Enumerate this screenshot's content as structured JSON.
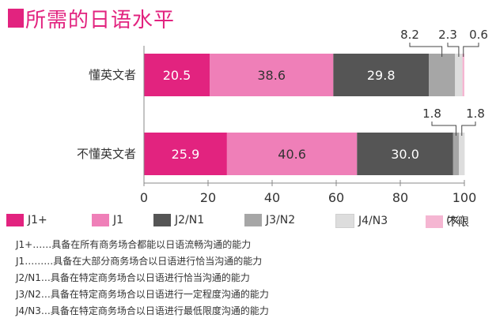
{
  "title": "所需的日语水平",
  "colors": {
    "title": "#e2237f",
    "J1+": "#e2237f",
    "J1": "#ef7fb8",
    "J2/N1": "#555555",
    "J3/N2": "#a6a6a6",
    "J4/N3": "#dddddd",
    "不限": "#f5b6d2"
  },
  "chart_data": {
    "type": "bar",
    "orientation": "horizontal",
    "stacked": true,
    "categories": [
      "懂英文者",
      "不懂英文者"
    ],
    "series": [
      {
        "name": "J1+",
        "values": [
          20.5,
          25.9
        ]
      },
      {
        "name": "J1",
        "values": [
          38.6,
          40.6
        ]
      },
      {
        "name": "J2/N1",
        "values": [
          29.8,
          30.0
        ]
      },
      {
        "name": "J3/N2",
        "values": [
          8.2,
          1.8
        ]
      },
      {
        "name": "J4/N3",
        "values": [
          2.3,
          1.8
        ]
      },
      {
        "name": "不限",
        "values": [
          0.6,
          0.0
        ]
      }
    ],
    "inside_labels": [
      [
        "20.5",
        "38.6",
        "29.8"
      ],
      [
        "25.9",
        "40.6",
        "30.0"
      ]
    ],
    "callouts": [
      [
        "8.2",
        "2.3",
        "0.6"
      ],
      [
        "1.8",
        "1.8"
      ]
    ],
    "xlim": [
      0,
      100
    ],
    "xticks": [
      "0",
      "20",
      "40",
      "60",
      "80",
      "100"
    ],
    "xunit": "(%)",
    "legend_position": "bottom"
  },
  "notes": [
    {
      "key": "J1+",
      "text": "……具备在所有商务场合都能以日语流畅沟通的能力"
    },
    {
      "key": "J1",
      "text": "………具备在大部分商务场合以日语进行恰当沟通的能力"
    },
    {
      "key": "J2/N1",
      "text": "…具备在特定商务场合以日语进行恰当沟通的能力"
    },
    {
      "key": "J3/N2",
      "text": "…具备在特定商务场合以日语进行一定程度沟通的能力"
    },
    {
      "key": "J4/N3",
      "text": "…具备在特定商务场合以日语进行最低限度沟通的能力"
    }
  ]
}
